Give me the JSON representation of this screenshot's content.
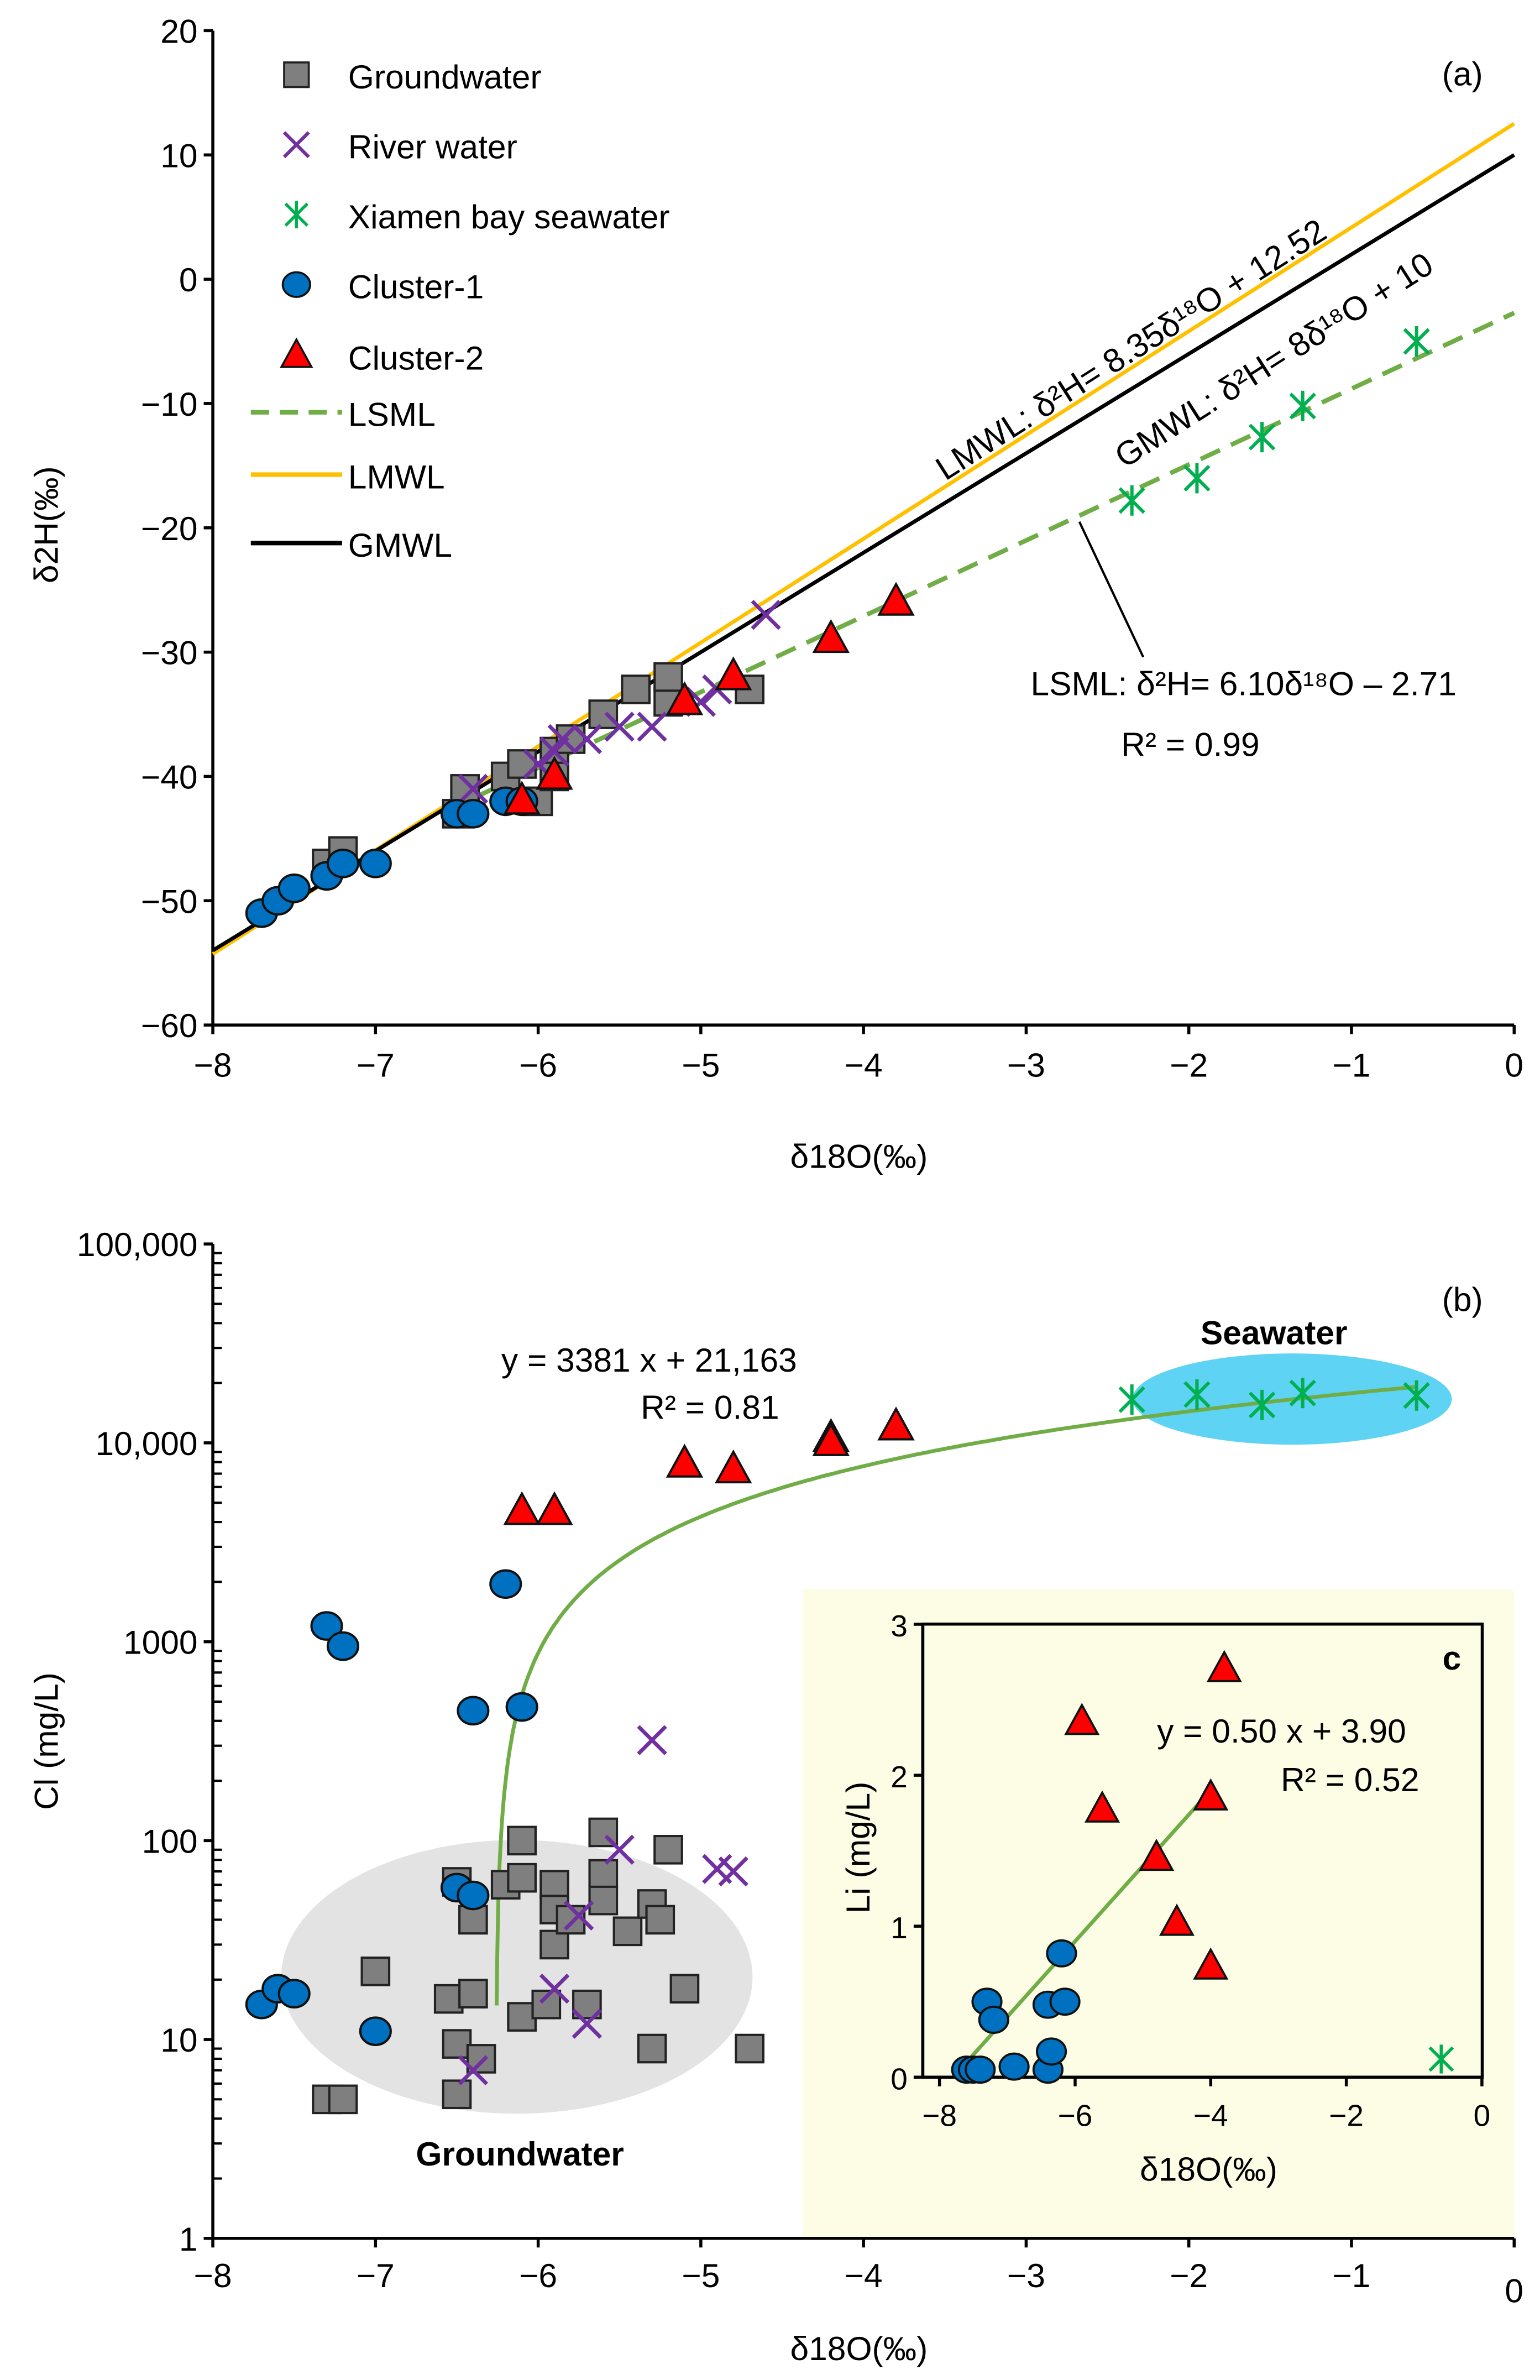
{
  "chart_data": [
    {
      "type": "scatter",
      "panel_label": "(a)",
      "xlabel": "δ18O(‰)",
      "ylabel": "δ2H(‰)",
      "xlim": [
        -8,
        0
      ],
      "ylim": [
        -60,
        20
      ],
      "xticks": [
        -8,
        -7,
        -6,
        -5,
        -4,
        -3,
        -2,
        -1,
        0
      ],
      "xtick_labels": [
        "−8",
        "−7",
        "−6",
        "−5",
        "−4",
        "−3",
        "−2",
        "−1",
        "0"
      ],
      "yticks": [
        20,
        10,
        0,
        -10,
        -20,
        -30,
        -40,
        -50,
        -60
      ],
      "ytick_labels": [
        "20",
        "10",
        "0",
        "−10",
        "−20",
        "−30",
        "−40",
        "−50",
        "−60"
      ],
      "legend": {
        "placement": "top-left",
        "entries": [
          "Groundwater",
          "River water",
          "Xiamen bay seawater",
          "Cluster-1",
          "Cluster-2",
          "LSML",
          "LMWL",
          "GMWL"
        ]
      },
      "series": [
        {
          "name": "Groundwater",
          "marker": "square",
          "color": "#7f7f7f",
          "points": [
            [
              -7.3,
              -47
            ],
            [
              -7.2,
              -46
            ],
            [
              -6.5,
              -43
            ],
            [
              -6.45,
              -41
            ],
            [
              -6.2,
              -40
            ],
            [
              -6.1,
              -39
            ],
            [
              -6.0,
              -42
            ],
            [
              -5.9,
              -38
            ],
            [
              -5.9,
              -40
            ],
            [
              -5.8,
              -37
            ],
            [
              -5.6,
              -35
            ],
            [
              -5.4,
              -33
            ],
            [
              -5.2,
              -34
            ],
            [
              -5.2,
              -32
            ],
            [
              -4.7,
              -33
            ]
          ]
        },
        {
          "name": "River water",
          "marker": "x",
          "color": "#7030a0",
          "points": [
            [
              -6.4,
              -41
            ],
            [
              -6.0,
              -39
            ],
            [
              -5.9,
              -38
            ],
            [
              -5.85,
              -37
            ],
            [
              -5.7,
              -37
            ],
            [
              -5.5,
              -36
            ],
            [
              -5.3,
              -36
            ],
            [
              -5.0,
              -34
            ],
            [
              -4.9,
              -33
            ],
            [
              -4.6,
              -27
            ]
          ]
        },
        {
          "name": "Xiamen bay seawater",
          "marker": "asterisk",
          "color": "#00b050",
          "points": [
            [
              -2.35,
              -17.8
            ],
            [
              -1.95,
              -16
            ],
            [
              -1.55,
              -12.7
            ],
            [
              -1.3,
              -10.2
            ],
            [
              -0.6,
              -5
            ]
          ]
        },
        {
          "name": "Cluster-1",
          "marker": "circle",
          "color": "#0070c0",
          "points": [
            [
              -7.7,
              -51
            ],
            [
              -7.6,
              -50
            ],
            [
              -7.5,
              -49
            ],
            [
              -7.3,
              -48
            ],
            [
              -7.2,
              -47
            ],
            [
              -7.0,
              -47
            ],
            [
              -6.5,
              -43
            ],
            [
              -6.4,
              -43
            ],
            [
              -6.2,
              -42
            ],
            [
              -6.1,
              -42
            ]
          ]
        },
        {
          "name": "Cluster-2",
          "marker": "triangle",
          "color": "#ff0000",
          "points": [
            [
              -6.1,
              -42
            ],
            [
              -5.9,
              -40
            ],
            [
              -5.1,
              -34
            ],
            [
              -4.8,
              -32
            ],
            [
              -4.2,
              -29
            ],
            [
              -3.8,
              -26
            ]
          ]
        }
      ],
      "lines": [
        {
          "name": "LSML",
          "slope": 6.1,
          "intercept": -2.71,
          "x_range": [
            -6.4,
            0
          ],
          "color": "#70ad47",
          "style": "dashed"
        },
        {
          "name": "LMWL",
          "slope": 8.35,
          "intercept": 12.52,
          "x_range": [
            -8,
            0
          ],
          "color": "#ffc000",
          "style": "solid"
        },
        {
          "name": "GMWL",
          "slope": 8,
          "intercept": 10,
          "x_range": [
            -8,
            0
          ],
          "color": "#000000",
          "style": "solid"
        }
      ],
      "annotations": {
        "lmwl": "LMWL: δ²H= 8.35δ¹⁸O + 12.52",
        "gmwl": "GMWL: δ²H= 8δ¹⁸O + 10",
        "lsml": "LSML: δ²H= 6.10δ¹⁸O – 2.71",
        "lsml_r2": "R² = 0.99"
      }
    },
    {
      "type": "scatter",
      "panel_label": "(b)",
      "xlabel": "δ18O(‰)",
      "ylabel": "Cl (mg/L)",
      "xlim": [
        -8,
        0
      ],
      "ylim": [
        1,
        100000
      ],
      "yscale": "log",
      "xticks": [
        -8,
        -7,
        -6,
        -5,
        -4,
        -3,
        -2,
        -1,
        0
      ],
      "xtick_labels": [
        "−8",
        "−7",
        "−6",
        "−5",
        "−4",
        "−3",
        "−2",
        "−1",
        "0"
      ],
      "yticks": [
        100000,
        10000,
        1000,
        100,
        10,
        1
      ],
      "ytick_labels": [
        "100,000",
        "10,000",
        "1000",
        "100",
        "10",
        "1"
      ],
      "series": [
        {
          "name": "Groundwater",
          "marker": "square",
          "color": "#7f7f7f",
          "points": [
            [
              -7.3,
              5
            ],
            [
              -7.2,
              5
            ],
            [
              -7.0,
              22
            ],
            [
              -6.55,
              16
            ],
            [
              -6.4,
              17
            ],
            [
              -6.5,
              9.5
            ],
            [
              -6.5,
              5.3
            ],
            [
              -6.35,
              8
            ],
            [
              -6.5,
              62
            ],
            [
              -6.4,
              40
            ],
            [
              -6.2,
              60
            ],
            [
              -6.1,
              100
            ],
            [
              -6.1,
              65
            ],
            [
              -6.1,
              13
            ],
            [
              -5.9,
              60
            ],
            [
              -5.9,
              45
            ],
            [
              -5.9,
              30
            ],
            [
              -5.95,
              15
            ],
            [
              -5.8,
              40
            ],
            [
              -5.7,
              15
            ],
            [
              -5.6,
              110
            ],
            [
              -5.6,
              68
            ],
            [
              -5.6,
              50
            ],
            [
              -5.45,
              35
            ],
            [
              -5.3,
              48
            ],
            [
              -5.25,
              40
            ],
            [
              -5.2,
              90
            ],
            [
              -5.1,
              18
            ],
            [
              -5.3,
              9
            ],
            [
              -4.7,
              9
            ]
          ]
        },
        {
          "name": "River water",
          "marker": "x",
          "color": "#7030a0",
          "points": [
            [
              -5.3,
              320
            ],
            [
              -5.5,
              90
            ],
            [
              -4.9,
              72
            ],
            [
              -4.8,
              70
            ],
            [
              -5.9,
              18
            ],
            [
              -5.7,
              12
            ],
            [
              -5.75,
              42
            ],
            [
              -6.4,
              7
            ]
          ]
        },
        {
          "name": "Xiamen bay seawater",
          "marker": "asterisk",
          "color": "#00b050",
          "points": [
            [
              -2.35,
              16500
            ],
            [
              -1.95,
              17500
            ],
            [
              -1.55,
              15500
            ],
            [
              -1.3,
              17800
            ],
            [
              -0.6,
              17300
            ]
          ]
        },
        {
          "name": "Cluster-1",
          "marker": "circle",
          "color": "#0070c0",
          "points": [
            [
              -6.2,
              1950
            ],
            [
              -7.3,
              1200
            ],
            [
              -7.2,
              950
            ],
            [
              -6.4,
              450
            ],
            [
              -6.1,
              470
            ],
            [
              -6.5,
              58
            ],
            [
              -6.4,
              53
            ],
            [
              -7.7,
              15
            ],
            [
              -7.6,
              18
            ],
            [
              -7.5,
              17
            ],
            [
              -7.0,
              11
            ]
          ]
        },
        {
          "name": "Cluster-2",
          "marker": "triangle",
          "color": "#ff0000",
          "points": [
            [
              -6.1,
              4500
            ],
            [
              -5.9,
              4500
            ],
            [
              -5.1,
              7800
            ],
            [
              -4.8,
              7300
            ],
            [
              -4.2,
              10500
            ],
            [
              -4.2,
              10000
            ],
            [
              -3.8,
              12000
            ]
          ]
        }
      ],
      "fit": {
        "slope": 3381,
        "intercept": 21163,
        "x_range": [
          -6.255,
          -0.6
        ],
        "color": "#70ad47"
      },
      "annotations": {
        "equation": "y = 3381 x + 21,163",
        "r2": "R² = 0.81",
        "seawater": "Seawater",
        "groundwater": "Groundwater"
      },
      "region_colors": {
        "seawater": "#5fd3f3",
        "groundwater": "#e3e3e3",
        "inset_bg": "#fdfde6"
      }
    },
    {
      "type": "scatter",
      "panel_label": "c",
      "xlabel": "δ18O(‰)",
      "ylabel": "Li (mg/L)",
      "xlim": [
        -8,
        0
      ],
      "ylim": [
        0,
        3
      ],
      "xticks": [
        -8,
        -6,
        -4,
        -2,
        0
      ],
      "xtick_labels": [
        "−8",
        "−6",
        "−4",
        "−2",
        "0"
      ],
      "yticks": [
        0,
        1,
        2,
        3
      ],
      "ytick_labels": [
        "0",
        "1",
        "2",
        "3"
      ],
      "series": [
        {
          "name": "Cluster-1",
          "marker": "circle",
          "color": "#0070c0",
          "points": [
            [
              -7.6,
              0.05
            ],
            [
              -7.5,
              0.05
            ],
            [
              -7.4,
              0.05
            ],
            [
              -7.3,
              0.5
            ],
            [
              -7.2,
              0.38
            ],
            [
              -6.9,
              0.07
            ],
            [
              -6.4,
              0.05
            ],
            [
              -6.35,
              0.17
            ],
            [
              -6.4,
              0.48
            ],
            [
              -6.15,
              0.5
            ],
            [
              -6.2,
              0.82
            ]
          ]
        },
        {
          "name": "Cluster-2",
          "marker": "triangle",
          "color": "#ff0000",
          "points": [
            [
              -3.8,
              2.7
            ],
            [
              -5.9,
              2.35
            ],
            [
              -5.6,
              1.77
            ],
            [
              -4.0,
              1.85
            ],
            [
              -4.8,
              1.45
            ],
            [
              -4.5,
              1.02
            ],
            [
              -4.0,
              0.73
            ]
          ]
        },
        {
          "name": "Xiamen bay seawater",
          "marker": "asterisk",
          "color": "#00b050",
          "points": [
            [
              -0.6,
              0.12
            ]
          ]
        }
      ],
      "fit": {
        "slope": 0.5,
        "intercept": 3.9,
        "x_range": [
          -7.6,
          -4
        ],
        "color": "#70ad47"
      },
      "annotations": {
        "equation": "y = 0.50 x + 3.90",
        "r2": "R² = 0.52"
      }
    }
  ]
}
